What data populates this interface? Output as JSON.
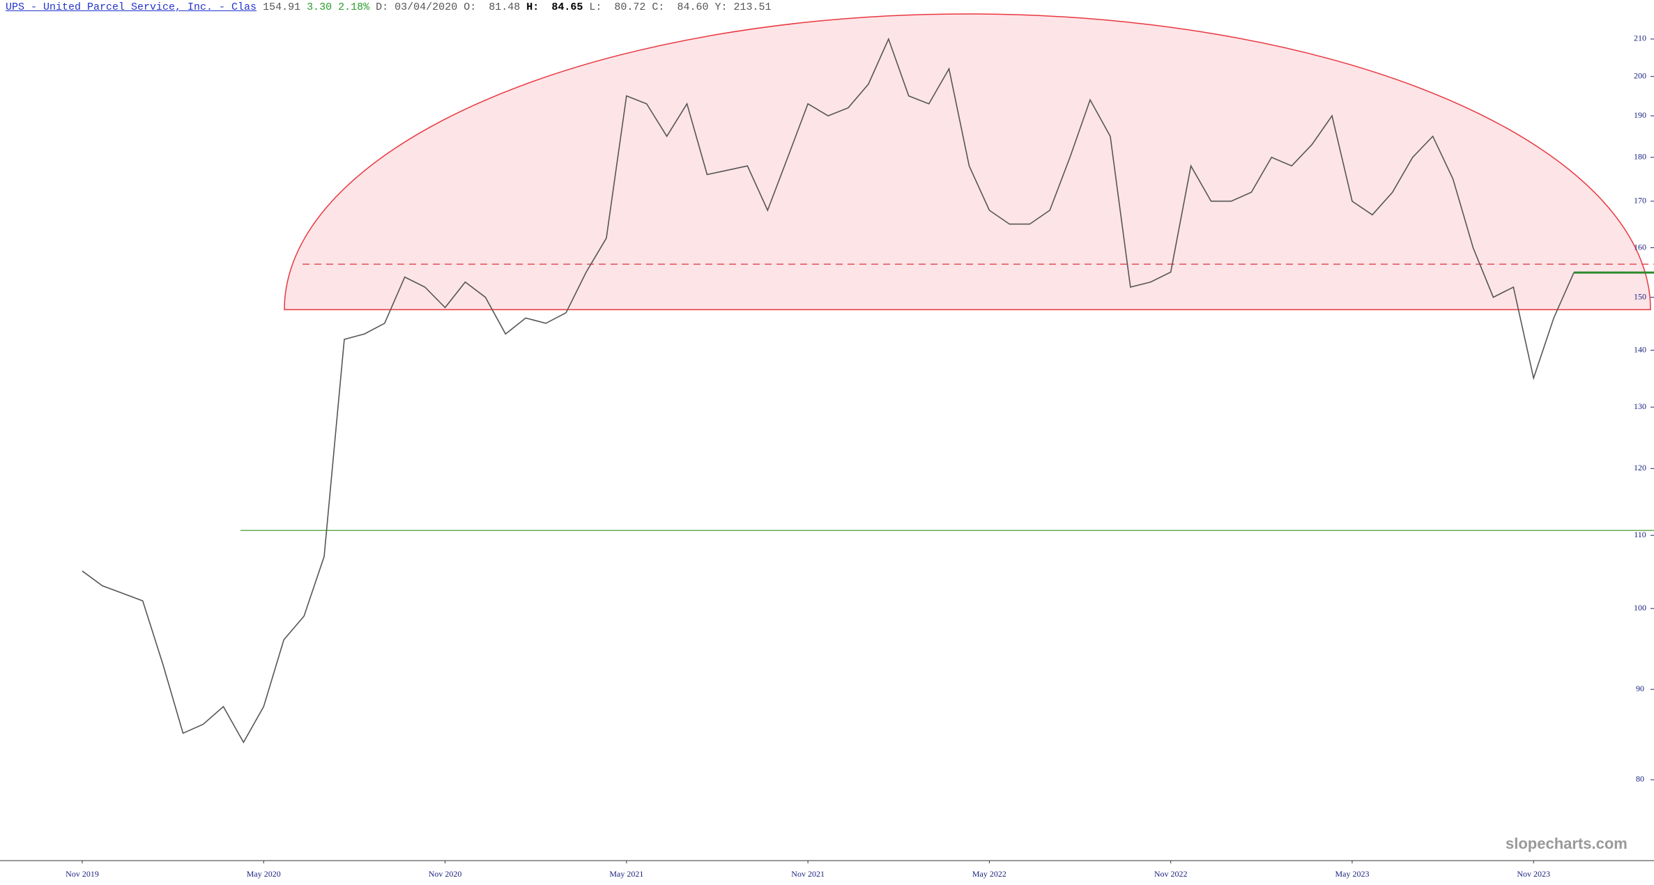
{
  "header": {
    "symbol": "UPS - United Parcel Service, Inc. - Clas",
    "last": "154.91",
    "change": "3.30",
    "change_pct": "2.18%",
    "date": "D: 03/04/2020",
    "open_label": "O:",
    "open": "81.48",
    "high_label": "H:",
    "high": "84.65",
    "low_label": "L:",
    "low": "80.72",
    "close_label": "C:",
    "close": "84.60",
    "cursor_y": "Y: 213.51"
  },
  "chart_data": {
    "type": "line",
    "x": [
      0,
      1,
      2,
      3,
      4,
      5,
      6,
      7,
      8,
      9,
      10,
      11,
      12,
      13,
      14,
      15,
      16,
      17,
      18,
      19,
      20,
      21,
      22,
      23,
      24,
      25,
      26,
      27,
      28,
      29,
      30,
      31,
      32,
      33,
      34,
      35,
      36,
      37,
      38,
      39,
      40,
      41,
      42,
      43,
      44,
      45,
      46,
      47,
      48,
      49,
      50,
      51,
      52,
      53,
      54,
      55,
      56,
      57,
      58,
      59,
      60,
      61,
      62,
      63,
      64,
      65,
      66,
      67,
      68,
      69,
      70,
      71,
      72,
      73,
      74
    ],
    "values": [
      105,
      103,
      102,
      101,
      93,
      85,
      86,
      88,
      84,
      88,
      96,
      99,
      107,
      142,
      143,
      145,
      154,
      152,
      148,
      153,
      150,
      143,
      146,
      145,
      147,
      155,
      162,
      195,
      193,
      185,
      193,
      176,
      177,
      178,
      168,
      180,
      193,
      190,
      192,
      198,
      210,
      195,
      193,
      202,
      178,
      168,
      165,
      165,
      168,
      180,
      194,
      185,
      152,
      153,
      155,
      178,
      170,
      170,
      172,
      180,
      178,
      183,
      190,
      170,
      167,
      172,
      180,
      185,
      175,
      160,
      150,
      152,
      135,
      146,
      154.91
    ],
    "color": "#555555",
    "xticks": [
      {
        "value": 0,
        "label": "Nov 2019"
      },
      {
        "value": 9,
        "label": "May 2020"
      },
      {
        "value": 18,
        "label": "Nov 2020"
      },
      {
        "value": 27,
        "label": "May 2021"
      },
      {
        "value": 36,
        "label": "Nov 2021"
      },
      {
        "value": 45,
        "label": "May 2022"
      },
      {
        "value": 54,
        "label": "Nov 2022"
      },
      {
        "value": 63,
        "label": "May 2023"
      },
      {
        "value": 72,
        "label": "Nov 2023"
      }
    ],
    "ylim": [
      72,
      215.6
    ],
    "yticks": [
      80,
      90,
      100,
      110,
      120,
      130,
      140,
      150,
      160,
      170,
      180,
      190,
      200,
      210
    ],
    "log_scale": true,
    "horizontal_lines": [
      {
        "value": 110.7,
        "color": "#6aa84f",
        "dashed": false
      },
      {
        "value": 156.6,
        "color": "#e0505a",
        "dashed": true
      }
    ],
    "arc": {
      "base": 147.6,
      "color": "#e8373f",
      "fill": "#fde4e7"
    },
    "last_line_color": "#2e8b2e",
    "watermark": "slopecharts.com"
  }
}
